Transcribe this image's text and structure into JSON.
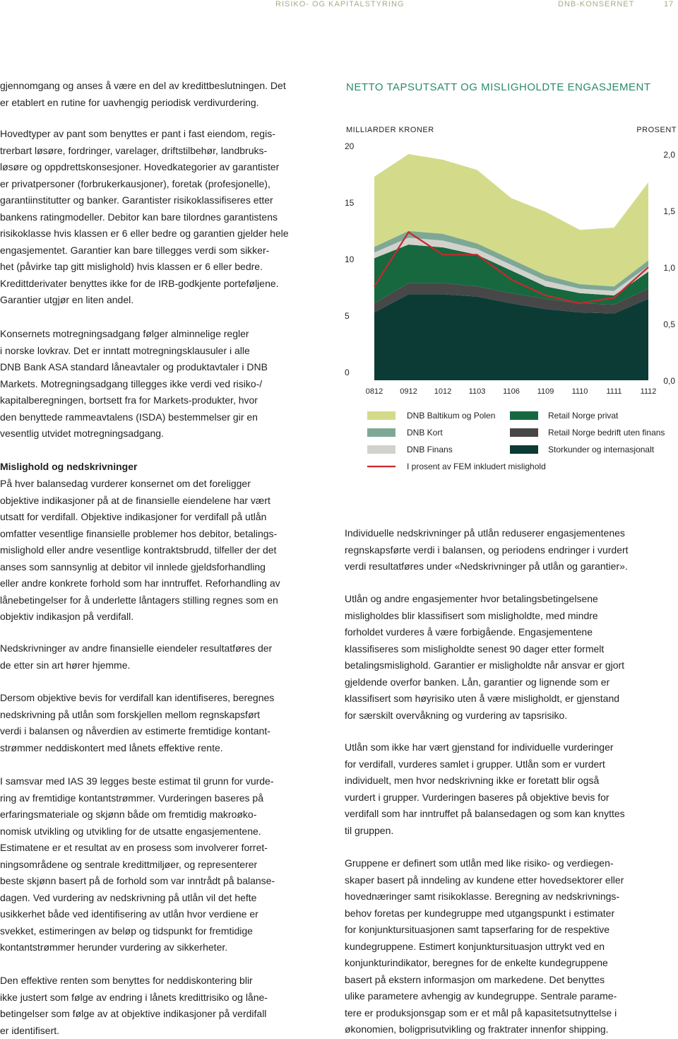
{
  "header": {
    "section": "RISIKO- OG KAPITALSTYRING",
    "company": "DNB-KONSERNET",
    "page": "17"
  },
  "left_column": {
    "heading": "Mislighold og nedskrivninger",
    "paragraphs": [
      [
        "gjennomgang og anses å være en del av kredittbeslutningen. Det",
        "er etablert en rutine for uavhengig periodisk verdivurdering."
      ],
      [
        "Hovedtyper av pant som benyttes er pant i fast eiendom, regis-",
        "trerbart løsøre, fordringer, varelager, driftstilbehør, landbruks-",
        "løsøre og oppdrettskonsesjoner. Hovedkategorier av garantister",
        "er privatpersoner (forbrukerkausjoner), foretak (profesjonelle),",
        "garantiinstitutter og banker. Garantister risikoklassifiseres etter",
        "bankens ratingmodeller. Debitor kan bare tilordnes garantistens",
        "risikoklasse hvis klassen er 6 eller bedre og garantien gjelder hele",
        "engasjementet. Garantier kan bare tillegges verdi som sikker-",
        "het (påvirke tap gitt mislighold) hvis klassen er 6 eller bedre.",
        "Kredittderivater benyttes ikke for de IRB-godkjente porteføljene.",
        "Garantier utgjør en liten andel."
      ],
      [
        "Konsernets motregningsadgang følger alminnelige regler",
        "i norske lovkrav. Det er inntatt motregningsklausuler i alle",
        "DNB Bank ASA standard låneavtaler og produktavtaler i DNB",
        "Markets. Motregningsadgang tillegges ikke verdi ved risiko-/",
        "kapitalberegningen, bortsett fra for Markets-produkter, hvor",
        "den benyttede rammeavtalens (ISDA) bestemmelser gir en",
        "vesentlig utvidet motregningsadgang."
      ],
      [
        "På hver balansedag vurderer konsernet om det foreligger",
        "objektive indikasjoner på at de finansielle eiendelene har vært",
        "utsatt for verdifall. Objektive indikasjoner for verdifall på utlån",
        "omfatter vesentlige finansielle problemer hos debitor, betalings-",
        "mislighold eller andre vesentlige kontraktsbrudd, tilfeller der det",
        "anses som sannsynlig at debitor vil innlede gjeldsforhandling",
        "eller andre konkrete forhold som har inntruffet. Reforhandling av",
        "lånebetingelser for å underlette låntagers stilling regnes som en",
        "objektiv indikasjon på verdifall."
      ],
      [
        "Nedskrivninger av andre finansielle eiendeler resultatføres der",
        "de etter sin art hører hjemme."
      ],
      [
        "Dersom objektive bevis for verdifall kan identifiseres, beregnes",
        "nedskrivning på utlån som forskjellen mellom regnskapsført",
        "verdi i balansen og nåverdien av estimerte fremtidige kontant-",
        "strømmer neddiskontert med lånets effektive rente."
      ],
      [
        "I samsvar med IAS 39 legges beste estimat til grunn for vurde-",
        "ring av fremtidige kontantstrømmer. Vurderingen baseres på",
        "erfaringsmateriale og skjønn både om fremtidig makroøko-",
        "nomisk utvikling og utvikling for de utsatte engasjementene.",
        "Estimatene er et resultat av en prosess som involverer forret-",
        "ningsområdene og sentrale kredittmiljøer, og representerer",
        "beste skjønn basert på de forhold som var inntrådt på balanse-",
        "dagen. Ved vurdering av nedskrivning på utlån vil det hefte",
        "usikkerhet både ved identifisering av utlån hvor verdiene er",
        "svekket, estimeringen av beløp og tidspunkt for fremtidige",
        "kontantstrømmer herunder vurdering av sikkerheter."
      ],
      [
        "Den effektive renten som benyttes for neddiskontering blir",
        "ikke justert som følge av endring i lånets kredittrisiko og låne-",
        "betingelser som følge av at objektive indikasjoner på verdifall",
        "er identifisert."
      ]
    ]
  },
  "right_column": {
    "paragraphs": [
      [
        "Individuelle nedskrivninger på utlån reduserer engasjementenes",
        "regnskapsførte verdi i balansen, og periodens endringer i vurdert",
        "verdi resultatføres under «Nedskrivninger på utlån og garantier»."
      ],
      [
        "Utlån og andre engasjementer hvor betalingsbetingelsene",
        "misligholdes blir klassifisert som misligholdte, med mindre",
        "forholdet vurderes å være forbigående. Engasjementene",
        "klassifiseres som misligholdte senest 90 dager etter formelt",
        "betalingsmislighold. Garantier er misligholdte når ansvar er gjort",
        "gjeldende overfor banken. Lån, garantier og lignende som er",
        "klassifisert som høyrisiko uten å være misligholdt, er gjenstand",
        "for særskilt overvåkning og vurdering av tapsrisiko."
      ],
      [
        "Utlån som ikke har vært gjenstand for individuelle vurderinger",
        "for verdifall, vurderes samlet i grupper. Utlån som er vurdert",
        "individuelt, men hvor nedskrivning ikke er foretatt blir også",
        "vurdert i grupper. Vurderingen baseres på objektive bevis for",
        "verdifall som har inntruffet på balansedagen og som kan knyttes",
        "til gruppen."
      ],
      [
        "Gruppene er definert som utlån med like risiko- og verdiegen-",
        "skaper basert på inndeling av kundene etter hovedsektorer eller",
        "hovednæringer samt risikoklasse. Beregning av nedskrivnings-",
        "behov foretas per kundegruppe med utgangspunkt i estimater",
        "for konjunktursituasjonen samt tapserfaring for de respektive",
        "kundegruppene. Estimert konjunktursituasjon uttrykt ved en",
        "konjunkturindikator, beregnes for de enkelte kundegruppene",
        "basert på ekstern informasjon om markedene. Det benyttes",
        "ulike parametere avhengig av kundegruppe. Sentrale parame-",
        "tere er produksjonsgap som er et mål på kapasitetsutnyttelse i",
        "økonomien, boligprisutvikling og fraktrater innenfor shipping."
      ]
    ]
  },
  "chart_data": {
    "type": "area",
    "stacked": true,
    "title": "NETTO TAPSUTSATT OG MISLIGHOLDTE ENGASJEMENT",
    "y_label": "MILLIARDER KRONER",
    "y2_label": "PROSENT",
    "categories": [
      "0812",
      "0912",
      "1012",
      "1103",
      "1106",
      "1109",
      "1110",
      "1111",
      "1112"
    ],
    "ylim": [
      0,
      20
    ],
    "yticks": [
      0,
      5,
      10,
      15,
      20
    ],
    "y2lim": [
      0,
      2
    ],
    "y2ticks": [
      {
        "value": 0,
        "label": "0,0"
      },
      {
        "value": 0.5,
        "label": "0,5"
      },
      {
        "value": 1,
        "label": "1,0"
      },
      {
        "value": 1.5,
        "label": "1,5"
      },
      {
        "value": 2,
        "label": "2,0"
      }
    ],
    "series": [
      {
        "name": "DNB Baltikum og Polen",
        "color": "#d3db8a",
        "values": [
          6.2,
          6.8,
          6.55,
          6.5,
          5.4,
          5.6,
          4.8,
          5.2,
          6.9
        ]
      },
      {
        "name": "DNB Kort",
        "color": "#7ea895",
        "values": [
          0.5,
          0.6,
          0.6,
          0.5,
          0.5,
          0.5,
          0.4,
          0.4,
          0.5
        ]
      },
      {
        "name": "DNB Finans",
        "color": "#d2d2cd",
        "values": [
          0.5,
          0.6,
          0.6,
          0.5,
          0.5,
          0.5,
          0.4,
          0.4,
          0.5
        ]
      },
      {
        "name": "Retail Norge privat",
        "color": "#17683f",
        "values": [
          4.0,
          3.4,
          3.15,
          2.8,
          2.0,
          1.1,
          0.9,
          0.8,
          1.5
        ]
      },
      {
        "name": "Retail Norge bedrift uten finans",
        "color": "#474747",
        "values": [
          0.8,
          1.0,
          1.0,
          0.9,
          0.9,
          0.9,
          0.8,
          0.8,
          0.9
        ]
      },
      {
        "name": "Storkunder og internasjonalt",
        "color": "#0c3b36",
        "values": [
          6.0,
          7.6,
          7.6,
          7.4,
          6.8,
          6.3,
          6.0,
          5.9,
          7.2
        ]
      },
      {
        "name": "I prosent av FEM inkludert mislighold",
        "color": "#c8282d",
        "type": "line",
        "axis": "y2",
        "values": [
          0.83,
          1.31,
          1.11,
          1.11,
          0.89,
          0.75,
          0.68,
          0.73,
          1.0
        ]
      }
    ]
  }
}
